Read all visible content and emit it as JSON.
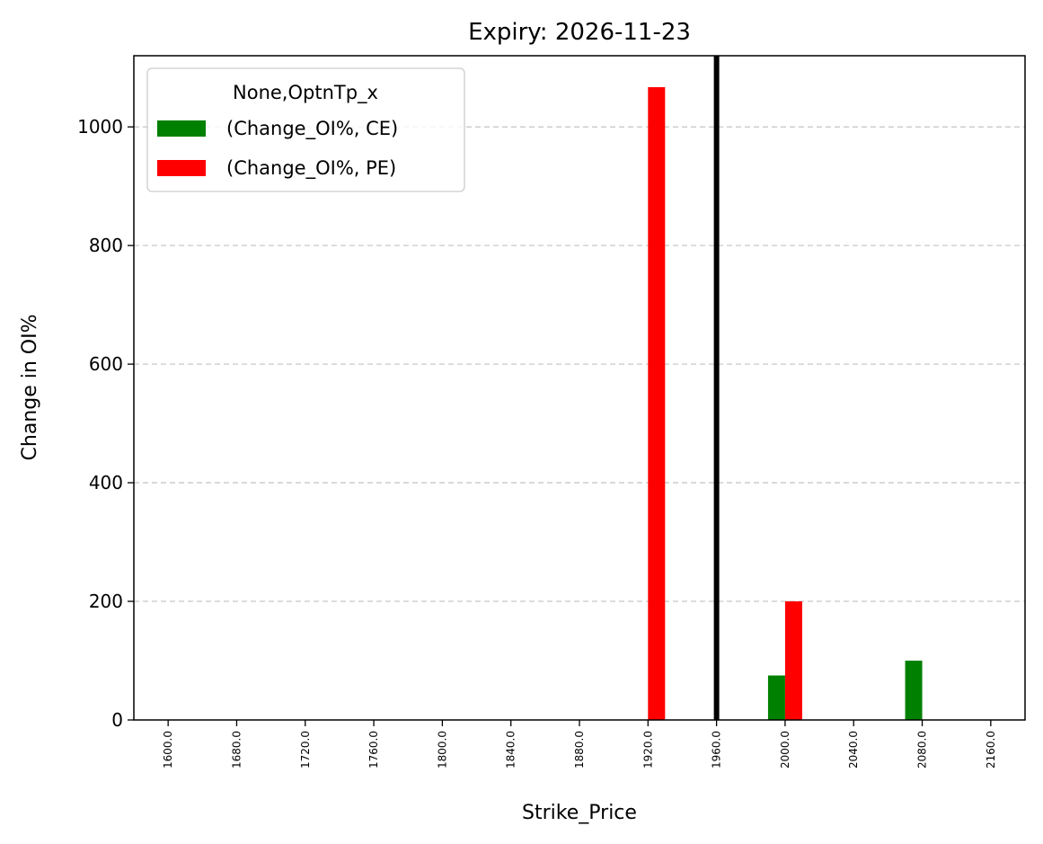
{
  "chart_data": {
    "type": "bar",
    "title": "Expiry: 2026-11-23",
    "xlabel": "Strike_Price",
    "ylabel": "Change in OI%",
    "categories": [
      "1600.0",
      "1680.0",
      "1720.0",
      "1760.0",
      "1800.0",
      "1840.0",
      "1880.0",
      "1920.0",
      "1960.0",
      "2000.0",
      "2040.0",
      "2080.0",
      "2160.0"
    ],
    "series": [
      {
        "name": "(Change_OI%, CE)",
        "color": "#008000",
        "values": [
          0,
          0,
          0,
          0,
          0,
          0,
          0,
          0,
          0,
          75,
          0,
          100,
          0
        ]
      },
      {
        "name": "(Change_OI%, PE)",
        "color": "#ff0000",
        "values": [
          0,
          0,
          0,
          0,
          0,
          0,
          0,
          1067,
          0,
          200,
          0,
          0,
          0
        ]
      }
    ],
    "ylim": [
      0,
      1120
    ],
    "yticks": [
      0,
      200,
      400,
      600,
      800,
      1000
    ],
    "grid": "y-dashed",
    "legend": {
      "title": "None,OptnTp_x",
      "position": "top-left"
    },
    "vline": {
      "category": "1960.0",
      "color": "#000000"
    }
  }
}
